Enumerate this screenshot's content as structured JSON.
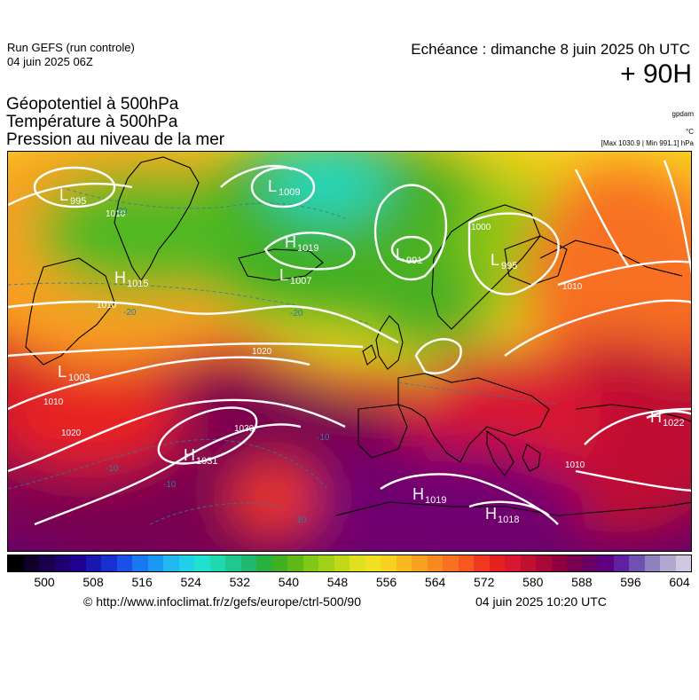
{
  "header": {
    "run_name": "Run GEFS (run controle)",
    "run_date": "04 juin 2025 06Z",
    "valid_time": "Echéance : dimanche 8 juin 2025 0h UTC",
    "lead_time": "+ 90H",
    "params": [
      "Géopotentiel à 500hPa",
      "Température à 500hPa",
      "Pression au niveau de la mer"
    ],
    "unit_geopotential": "gpdam",
    "unit_temperature": "°C",
    "minmax": "[Max 1030.9 | Min 991.1] hPa"
  },
  "pressure_centers": [
    {
      "type": "L",
      "value": "995"
    },
    {
      "type": "L",
      "value": "1009"
    },
    {
      "type": "H",
      "value": "1019"
    },
    {
      "type": "L",
      "value": "1007"
    },
    {
      "type": "L",
      "value": "991"
    },
    {
      "type": "L",
      "value": "995"
    },
    {
      "type": "H",
      "value": "1015"
    },
    {
      "type": "L",
      "value": "1003"
    },
    {
      "type": "H",
      "value": "1031"
    },
    {
      "type": "H",
      "value": "1019"
    },
    {
      "type": "H",
      "value": "1018"
    },
    {
      "type": "H",
      "value": "1022"
    }
  ],
  "isobar_labels": [
    "1010",
    "1010",
    "1000",
    "1010",
    "1020",
    "1010",
    "1020",
    "1030",
    "1010"
  ],
  "temperature_labels": [
    "-20",
    "-20",
    "-20",
    "-10",
    "-10",
    "-10",
    "-10"
  ],
  "colorbar": {
    "colors": [
      "#000000",
      "#10002a",
      "#1c0050",
      "#200070",
      "#200090",
      "#1818b0",
      "#1830d0",
      "#1850e8",
      "#1878f0",
      "#1898f0",
      "#20b8f0",
      "#20d0e8",
      "#20e0d0",
      "#20d8b0",
      "#20c890",
      "#20b870",
      "#28b040",
      "#40b020",
      "#60b818",
      "#80c818",
      "#a0d018",
      "#c0d818",
      "#e0e020",
      "#f0e020",
      "#f8d020",
      "#f8b820",
      "#f8a020",
      "#f88820",
      "#f87020",
      "#f85820",
      "#f03820",
      "#e82020",
      "#d81830",
      "#c01030",
      "#a80838",
      "#900040",
      "#780050",
      "#680068",
      "#600080",
      "#6020a0",
      "#7050b0",
      "#9080c0",
      "#b0a8d0",
      "#d0c8e0"
    ],
    "ticks": [
      "500",
      "508",
      "516",
      "524",
      "532",
      "540",
      "548",
      "556",
      "564",
      "572",
      "580",
      "588",
      "596",
      "604"
    ]
  },
  "footer": {
    "credit": "© http://www.infoclimat.fr/z/gefs/europe/ctrl-500/90",
    "generated": "04 juin 2025 10:20 UTC"
  }
}
